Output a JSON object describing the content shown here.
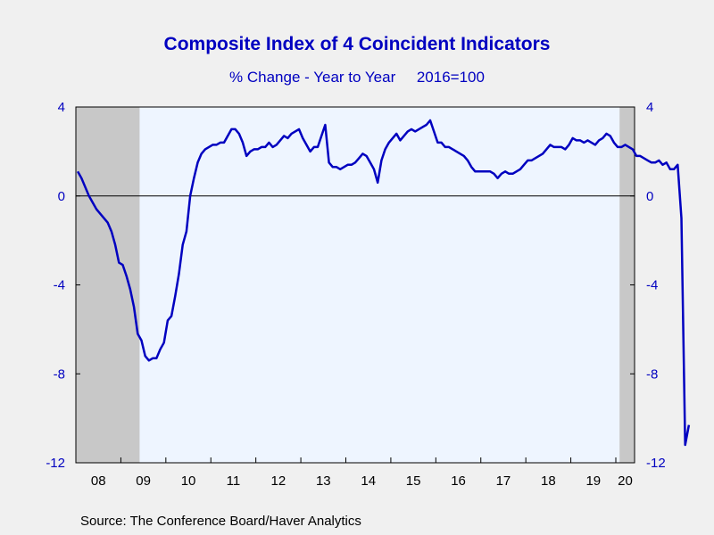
{
  "colors": {
    "title": "#0000c0",
    "axis_text": "#0000c0",
    "series": "#0000c0",
    "plot_bg": "#eef5ff",
    "recession": "#c8c8c8",
    "page_bg": "#f0f0f0"
  },
  "title": "Composite Index of 4 Coincident Indicators",
  "subtitle": "% Change - Year to Year     2016=100",
  "source": "Source:  The Conference Board/Haver Analytics",
  "chart_data": {
    "type": "line",
    "title": "Composite Index of 4 Coincident Indicators",
    "subtitle": "% Change - Year to Year     2016=100",
    "ylim": [
      -12,
      4
    ],
    "yticks": [
      4,
      0,
      -4,
      -8,
      -12
    ],
    "ytick_labels": [
      "4",
      "0",
      "-4",
      "-8",
      "-12"
    ],
    "y2ticks": [
      4,
      0,
      -4,
      -8,
      -12
    ],
    "y2tick_labels": [
      "4",
      "0",
      "-4",
      "-8",
      "-12"
    ],
    "xlim": [
      2008.0,
      2020.4167
    ],
    "xtick_labels": [
      "08",
      "09",
      "10",
      "11",
      "12",
      "13",
      "14",
      "15",
      "16",
      "17",
      "18",
      "19",
      "20"
    ],
    "zero_line": true,
    "grid": false,
    "recessions": [
      [
        2008.0,
        2009.4167
      ],
      [
        2020.0833,
        2020.4167
      ]
    ],
    "series": [
      {
        "values": [
          1.1,
          0.8,
          0.4,
          0.0,
          -0.3,
          -0.6,
          -0.8,
          -1.0,
          -1.2,
          -1.6,
          -2.2,
          -3.0,
          -3.1,
          -3.6,
          -4.2,
          -5.0,
          -6.2,
          -6.5,
          -7.2,
          -7.4,
          -7.3,
          -7.3,
          -6.9,
          -6.6,
          -5.6,
          -5.4,
          -4.5,
          -3.5,
          -2.2,
          -1.6,
          0.0,
          0.8,
          1.5,
          1.9,
          2.1,
          2.2,
          2.3,
          2.3,
          2.4,
          2.4,
          2.7,
          3.0,
          3.0,
          2.8,
          2.4,
          1.8,
          2.0,
          2.1,
          2.1,
          2.2,
          2.2,
          2.4,
          2.2,
          2.3,
          2.5,
          2.7,
          2.6,
          2.8,
          2.9,
          3.0,
          2.6,
          2.3,
          2.0,
          2.2,
          2.2,
          2.7,
          3.2,
          1.5,
          1.3,
          1.3,
          1.2,
          1.3,
          1.4,
          1.4,
          1.5,
          1.7,
          1.9,
          1.8,
          1.5,
          1.2,
          0.6,
          1.6,
          2.1,
          2.4,
          2.6,
          2.8,
          2.5,
          2.7,
          2.9,
          3.0,
          2.9,
          3.0,
          3.1,
          3.2,
          3.4,
          2.9,
          2.4,
          2.4,
          2.2,
          2.2,
          2.1,
          2.0,
          1.9,
          1.8,
          1.6,
          1.3,
          1.1,
          1.1,
          1.1,
          1.1,
          1.1,
          1.0,
          0.8,
          1.0,
          1.1,
          1.0,
          1.0,
          1.1,
          1.2,
          1.4,
          1.6,
          1.6,
          1.7,
          1.8,
          1.9,
          2.1,
          2.3,
          2.2,
          2.2,
          2.2,
          2.1,
          2.3,
          2.6,
          2.5,
          2.5,
          2.4,
          2.5,
          2.4,
          2.3,
          2.5,
          2.6,
          2.8,
          2.7,
          2.4,
          2.2,
          2.2,
          2.3,
          2.2,
          2.1,
          1.8,
          1.8,
          1.7,
          1.6,
          1.5,
          1.5,
          1.6,
          1.4,
          1.5,
          1.2,
          1.2,
          1.4,
          -1.0,
          -11.2,
          -10.3
        ]
      }
    ]
  }
}
